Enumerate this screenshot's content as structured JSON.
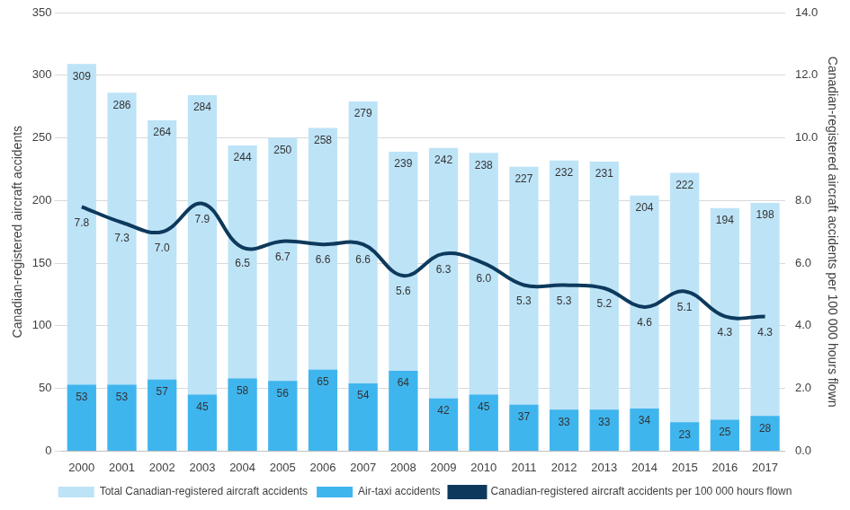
{
  "chart_data": {
    "type": "bar",
    "categories": [
      "2000",
      "2001",
      "2002",
      "2003",
      "2004",
      "2005",
      "2006",
      "2007",
      "2008",
      "2009",
      "2010",
      "2011",
      "2012",
      "2013",
      "2014",
      "2015",
      "2016",
      "2017"
    ],
    "series": [
      {
        "name": "Total Canadian-registered aircraft accidents",
        "type": "bar",
        "color": "#bde3f7",
        "values": [
          309,
          286,
          264,
          284,
          244,
          250,
          258,
          279,
          239,
          242,
          238,
          227,
          232,
          231,
          204,
          222,
          194,
          198
        ]
      },
      {
        "name": "Air-taxi accidents",
        "type": "bar",
        "color": "#3fb5ee",
        "values": [
          53,
          53,
          57,
          45,
          58,
          56,
          65,
          54,
          64,
          42,
          45,
          37,
          33,
          33,
          34,
          23,
          25,
          28
        ]
      },
      {
        "name": "Canadian-registered aircraft accidents per 100 000 hours flown",
        "type": "line",
        "color": "#0d3a5c",
        "axis": "y2",
        "line_style": "solid",
        "values": [
          7.8,
          7.3,
          7.0,
          7.9,
          6.5,
          6.7,
          6.6,
          6.6,
          5.6,
          6.3,
          6.0,
          5.3,
          5.3,
          5.2,
          4.6,
          5.1,
          4.3,
          4.3
        ],
        "value_labels": [
          "7.8",
          "7.3",
          "7.0",
          "7.9",
          "6.5",
          "6.7",
          "6.6",
          "6.6",
          "5.6",
          "6.3",
          "6.0",
          "5.3",
          "5.3",
          "5.2",
          "4.6",
          "5.1",
          "4.3",
          "4.3"
        ]
      }
    ],
    "y_label": "Canadian-registered aircraft accidents",
    "y2_label": "Canadian-registered aircraft accidents per 100 000 hours flown",
    "ylim": [
      0,
      350
    ],
    "yticks": [
      0,
      50,
      100,
      150,
      200,
      250,
      300,
      350
    ],
    "y2lim": [
      0,
      14
    ],
    "y2ticks": [
      {
        "value": 0,
        "label": "0.0"
      },
      {
        "value": 2,
        "label": "2.0"
      },
      {
        "value": 4,
        "label": "4.0"
      },
      {
        "value": 6,
        "label": "6.0"
      },
      {
        "value": 8,
        "label": "8.0"
      },
      {
        "value": 10,
        "label": "10.0"
      },
      {
        "value": 12,
        "label": "12.0"
      },
      {
        "value": 14,
        "label": "14.0"
      }
    ],
    "grid": true,
    "legend": "bottom",
    "data_labels": true
  }
}
